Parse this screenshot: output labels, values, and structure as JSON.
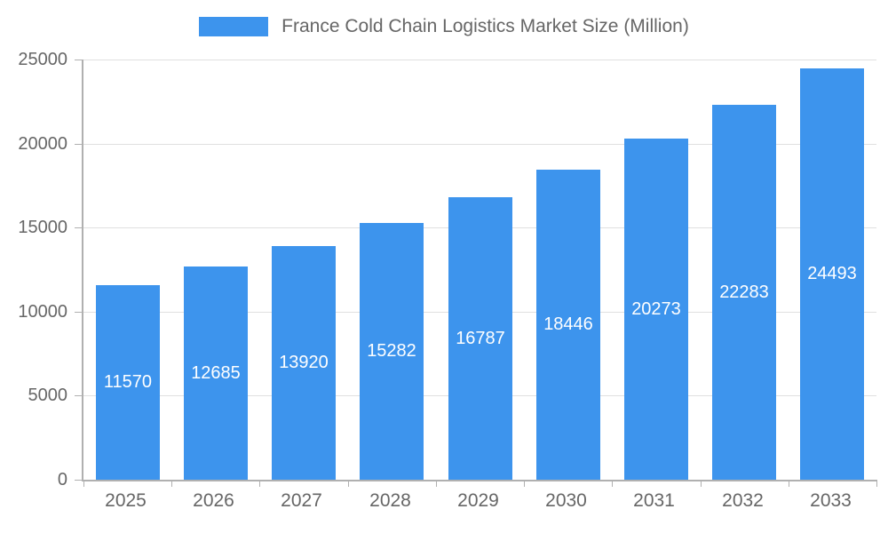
{
  "chart_data": {
    "type": "bar",
    "title": "France Cold Chain Logistics Market Size (Million)",
    "categories": [
      "2025",
      "2026",
      "2027",
      "2028",
      "2029",
      "2030",
      "2031",
      "2032",
      "2033"
    ],
    "values": [
      11570,
      12685,
      13920,
      15282,
      16787,
      18446,
      20273,
      22283,
      24493
    ],
    "xlabel": "",
    "ylabel": "",
    "ylim": [
      0,
      25000
    ],
    "yticks": [
      0,
      5000,
      10000,
      15000,
      20000,
      25000
    ],
    "grid": true,
    "legend_position": "top",
    "value_labels": "inside-center",
    "colors": {
      "bar": "#3d94ed",
      "value_label": "#ffffff",
      "axis_text": "#666666",
      "grid": "#e0e0e0",
      "axis_line": "#b0b0b0",
      "background": "#ffffff"
    }
  }
}
